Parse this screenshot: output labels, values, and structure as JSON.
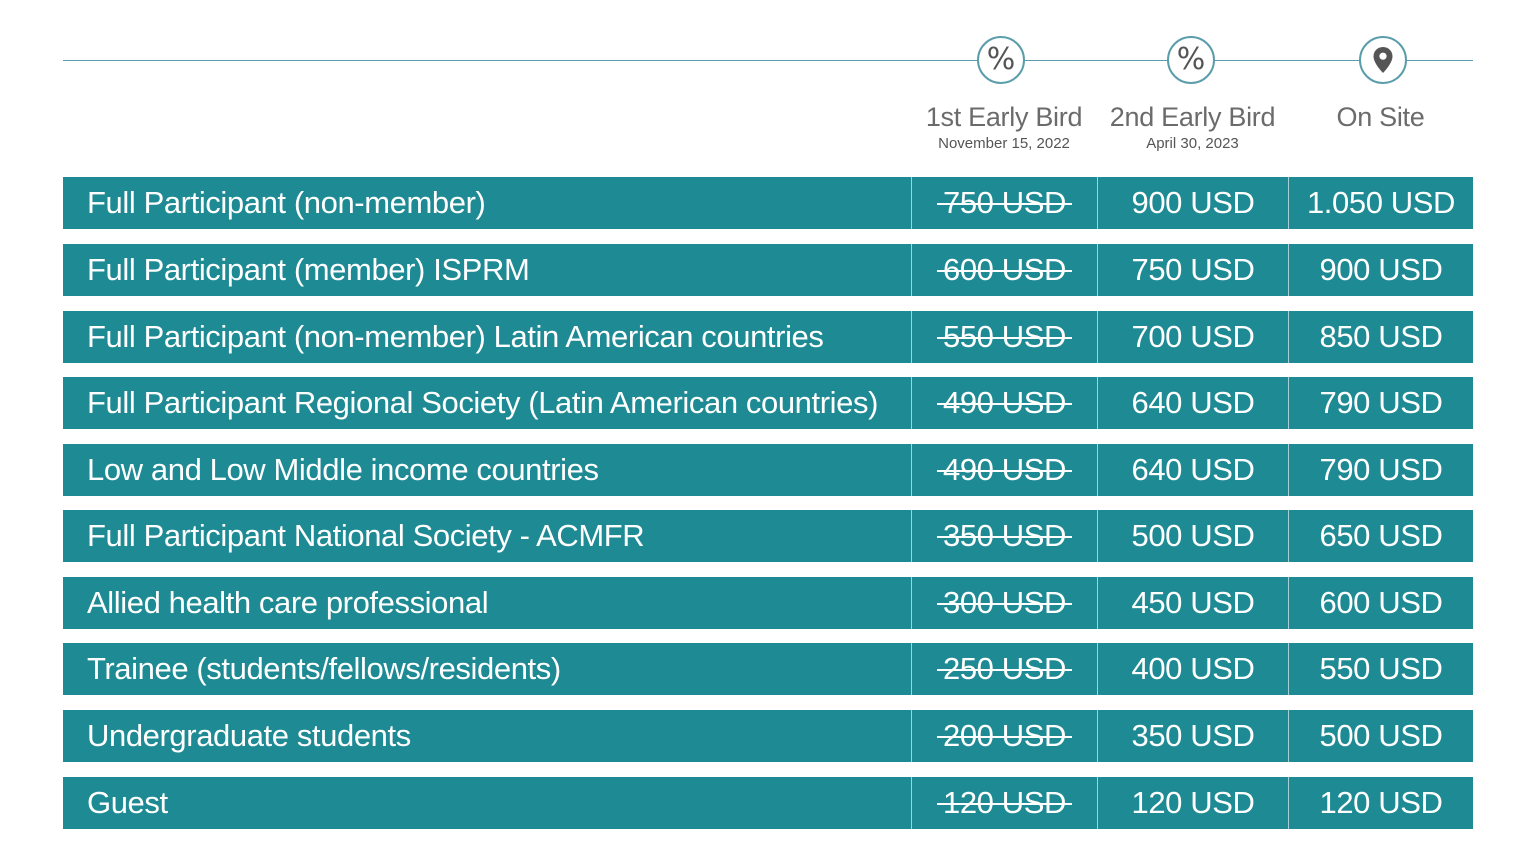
{
  "header": {
    "columns": [
      {
        "icon": "percent-icon",
        "title": "1st Early Bird",
        "date": "November 15, 2022"
      },
      {
        "icon": "percent-icon",
        "title": "2nd Early Bird",
        "date": "April 30, 2023"
      },
      {
        "icon": "map-pin-icon",
        "title": "On Site",
        "date": ""
      }
    ]
  },
  "colors": {
    "row_background": "#1e8a94",
    "line": "#5a9eab",
    "header_text": "#6b6b6b"
  },
  "rows": [
    {
      "label": "Full Participant (non-member)",
      "early1": "750 USD",
      "early2": "900 USD",
      "onsite": "1.050 USD"
    },
    {
      "label": "Full Participant (member) ISPRM",
      "early1": "600 USD",
      "early2": "750 USD",
      "onsite": "900 USD"
    },
    {
      "label": "Full Participant (non-member) Latin American countries",
      "early1": "550 USD",
      "early2": "700 USD",
      "onsite": "850 USD"
    },
    {
      "label": "Full Participant Regional Society (Latin American countries)",
      "early1": "490 USD",
      "early2": "640 USD",
      "onsite": "790 USD"
    },
    {
      "label": "Low and Low Middle income countries",
      "early1": "490 USD",
      "early2": "640 USD",
      "onsite": "790 USD"
    },
    {
      "label": "Full Participant National Society - ACMFR",
      "early1": "350 USD",
      "early2": "500 USD",
      "onsite": "650 USD"
    },
    {
      "label": "Allied health care professional",
      "early1": "300 USD",
      "early2": "450 USD",
      "onsite": "600 USD"
    },
    {
      "label": "Trainee (students/fellows/residents)",
      "early1": "250 USD",
      "early2": "400 USD",
      "onsite": "550 USD"
    },
    {
      "label": "Undergraduate students",
      "early1": "200 USD",
      "early2": "350 USD",
      "onsite": "500 USD"
    },
    {
      "label": "Guest",
      "early1": "120 USD",
      "early2": "120 USD",
      "onsite": "120 USD"
    }
  ]
}
